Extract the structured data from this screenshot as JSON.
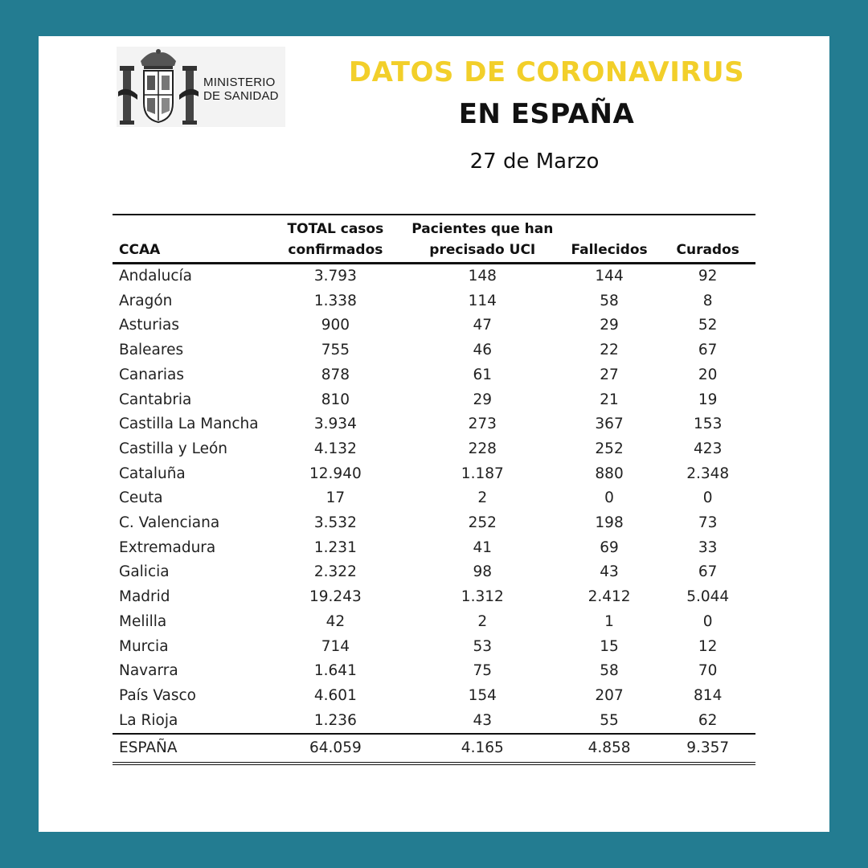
{
  "logo": {
    "line1": "MINISTERIO",
    "line2": "DE SANIDAD"
  },
  "title_line1": "DATOS DE CORONAVIRUS",
  "title_line2": "EN ESPAÑA",
  "date": "27 de Marzo",
  "colors": {
    "frame": "#237c91",
    "title_accent": "#f2cf2a"
  },
  "table": {
    "headers": [
      "CCAA",
      "TOTAL casos confirmados",
      "Pacientes que han precisado UCI",
      "Fallecidos",
      "Curados"
    ],
    "rows": [
      [
        "Andalucía",
        "3.793",
        "148",
        "144",
        "92"
      ],
      [
        "Aragón",
        "1.338",
        "114",
        "58",
        "8"
      ],
      [
        "Asturias",
        "900",
        "47",
        "29",
        "52"
      ],
      [
        "Baleares",
        "755",
        "46",
        "22",
        "67"
      ],
      [
        "Canarias",
        "878",
        "61",
        "27",
        "20"
      ],
      [
        "Cantabria",
        "810",
        "29",
        "21",
        "19"
      ],
      [
        "Castilla La Mancha",
        "3.934",
        "273",
        "367",
        "153"
      ],
      [
        "Castilla y León",
        "4.132",
        "228",
        "252",
        "423"
      ],
      [
        "Cataluña",
        "12.940",
        "1.187",
        "880",
        "2.348"
      ],
      [
        "Ceuta",
        "17",
        "2",
        "0",
        "0"
      ],
      [
        "C. Valenciana",
        "3.532",
        "252",
        "198",
        "73"
      ],
      [
        "Extremadura",
        "1.231",
        "41",
        "69",
        "33"
      ],
      [
        "Galicia",
        "2.322",
        "98",
        "43",
        "67"
      ],
      [
        "Madrid",
        "19.243",
        "1.312",
        "2.412",
        "5.044"
      ],
      [
        "Melilla",
        "42",
        "2",
        "1",
        "0"
      ],
      [
        "Murcia",
        "714",
        "53",
        "15",
        "12"
      ],
      [
        "Navarra",
        "1.641",
        "75",
        "58",
        "70"
      ],
      [
        "País Vasco",
        "4.601",
        "154",
        "207",
        "814"
      ],
      [
        "La Rioja",
        "1.236",
        "43",
        "55",
        "62"
      ]
    ],
    "total": [
      "ESPAÑA",
      "64.059",
      "4.165",
      "4.858",
      "9.357"
    ]
  }
}
